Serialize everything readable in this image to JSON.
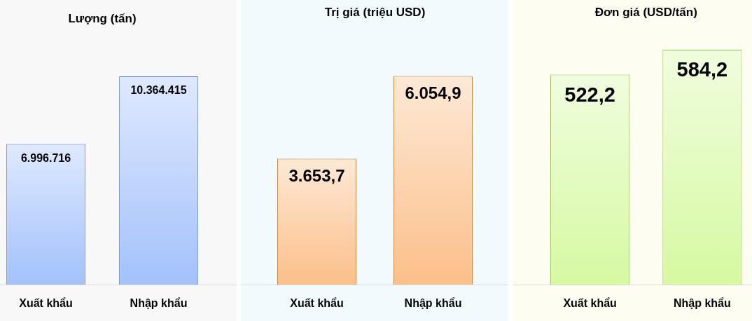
{
  "chart_data": [
    {
      "type": "bar",
      "title": "Lượng (tấn)",
      "categories": [
        "Xuất khẩu",
        "Nhập khẩu"
      ],
      "values": [
        6996716,
        10364415
      ],
      "value_labels": [
        "6.996.716",
        "10.364.415"
      ],
      "color": "#c1d5fc"
    },
    {
      "type": "bar",
      "title": "Trị giá (triệu USD)",
      "categories": [
        "Xuất khẩu",
        "Nhập khẩu"
      ],
      "values": [
        3653.7,
        6054.9
      ],
      "value_labels": [
        "3.653,7",
        "6.054,9"
      ],
      "color": "#fcd4b0"
    },
    {
      "type": "bar",
      "title": "Đơn giá (USD/tấn)",
      "categories": [
        "Xuất khẩu",
        "Nhập khẩu"
      ],
      "values": [
        522.2,
        584.2
      ],
      "value_labels": [
        "522,2",
        "584,2"
      ],
      "color": "#e3fbc0"
    }
  ]
}
